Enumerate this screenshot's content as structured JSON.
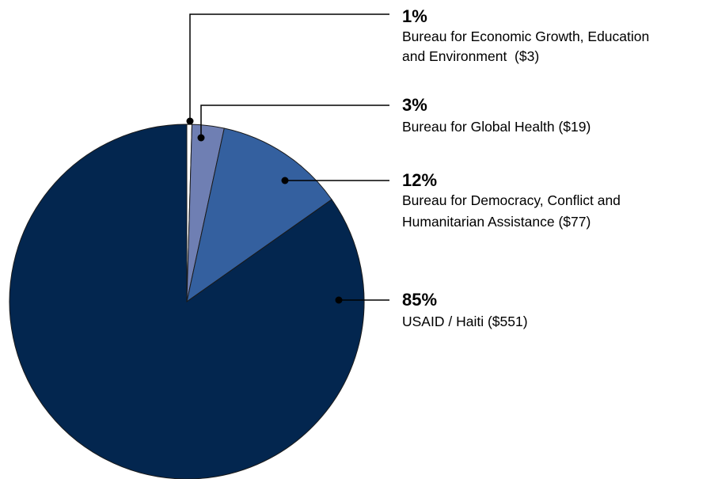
{
  "chart_data": {
    "type": "pie",
    "title": "",
    "start_angle_deg": 0,
    "direction": "clockwise",
    "slices": [
      {
        "percent_label": "1%",
        "value": 3,
        "label_lines": [
          "Bureau for Economic Growth, Education",
          "and Environment  ($3)"
        ],
        "color": "#ffffff"
      },
      {
        "percent_label": "3%",
        "value": 19,
        "label_lines": [
          "Bureau for Global Health ($19)"
        ],
        "color": "#6f7fb3"
      },
      {
        "percent_label": "12%",
        "value": 77,
        "label_lines": [
          "Bureau for Democracy, Conflict and",
          "Humanitarian Assistance ($77)"
        ],
        "color": "#34609f"
      },
      {
        "percent_label": "85%",
        "value": 551,
        "label_lines": [
          "USAID / Haiti ($551)"
        ],
        "color": "#03264f"
      }
    ]
  }
}
